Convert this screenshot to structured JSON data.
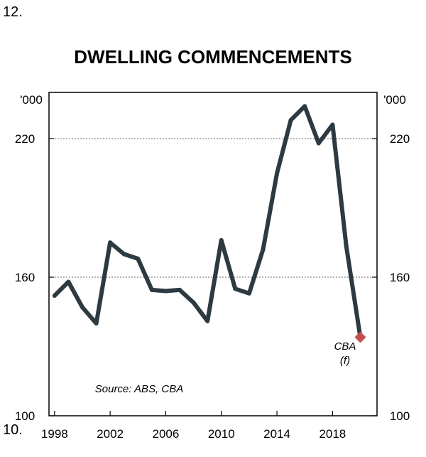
{
  "page_numbers": {
    "top": "12.",
    "bottom": "10."
  },
  "chart_data": {
    "type": "line",
    "title": "DWELLING COMMENCEMENTS",
    "unit_left": "'000",
    "unit_right": "'000",
    "source": "Source: ABS, CBA",
    "forecast_label_line1": "CBA",
    "forecast_label_line2": "(f)",
    "ylim": [
      100,
      240
    ],
    "y_ticks": [
      "100",
      "160",
      "220"
    ],
    "y_tick_values": [
      100,
      160,
      220
    ],
    "xlim": [
      1997.6,
      2021.2
    ],
    "x_ticks": [
      "1998",
      "2002",
      "2006",
      "2010",
      "2014",
      "2018"
    ],
    "x_tick_values": [
      1998,
      2002,
      2006,
      2010,
      2014,
      2018
    ],
    "gridlines_at": [
      160,
      220
    ],
    "series": [
      {
        "color": "#2d3a42",
        "x": [
          1998,
          1999,
          2000,
          2001,
          2002,
          2003,
          2004,
          2005,
          2006,
          2007,
          2008,
          2009,
          2010,
          2011,
          2012,
          2013,
          2014,
          2015,
          2016,
          2017,
          2018,
          2019
        ],
        "y": [
          152,
          158,
          147,
          140,
          175,
          170,
          168,
          154.5,
          154,
          154.5,
          149,
          141,
          176,
          155,
          153,
          172,
          205,
          228,
          234,
          218,
          226,
          173
        ]
      }
    ],
    "forecast": {
      "x": 2020,
      "y": 134,
      "color": "#c0504d"
    }
  }
}
